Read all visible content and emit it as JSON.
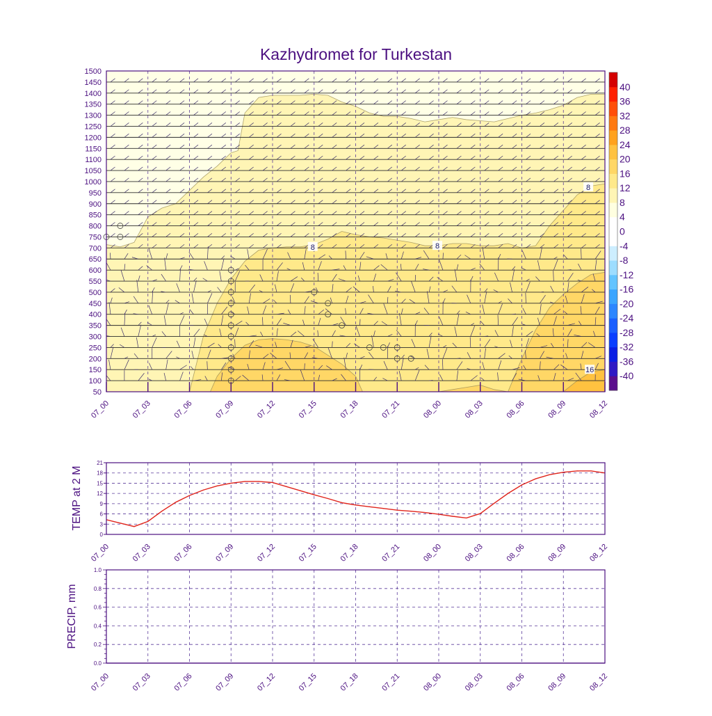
{
  "title": "Kazhydromet for Turkestan",
  "colors": {
    "frame": "#4b0f80",
    "grid": "#5a3a9a",
    "temp_line": "#e0241b"
  },
  "x_ticks": [
    "07_00",
    "07_03",
    "07_06",
    "07_09",
    "07_12",
    "07_15",
    "07_18",
    "07_21",
    "08_00",
    "08_03",
    "08_06",
    "08_09",
    "08_12"
  ],
  "cross_section": {
    "ylabels": [
      "50",
      "100",
      "150",
      "200",
      "250",
      "300",
      "350",
      "400",
      "450",
      "500",
      "550",
      "600",
      "650",
      "700",
      "750",
      "800",
      "850",
      "900",
      "950",
      "1000",
      "1050",
      "1100",
      "1150",
      "1200",
      "1250",
      "1300",
      "1350",
      "1400",
      "1450",
      "1500"
    ],
    "contour_labels": [
      "8",
      "8",
      "8",
      "16"
    ]
  },
  "colorbar": {
    "levels": [
      "-40",
      "-36",
      "-32",
      "-28",
      "-24",
      "-20",
      "-16",
      "-12",
      "-8",
      "-4",
      "0",
      "4",
      "8",
      "12",
      "16",
      "20",
      "24",
      "28",
      "32",
      "36",
      "40"
    ],
    "colors": [
      "#5b0f8c",
      "#2f1ac4",
      "#0a1fe4",
      "#0a3fff",
      "#1a5fff",
      "#2c86ff",
      "#3aa5ff",
      "#63c4ff",
      "#9dddff",
      "#cdeeff",
      "#ffffff",
      "#ffffff",
      "#ffffe0",
      "#fff5b5",
      "#ffe98a",
      "#ffd766",
      "#ffc240",
      "#ffa21e",
      "#ff7a10",
      "#ff4f08",
      "#ff2000",
      "#d40000"
    ]
  },
  "chart_data": [
    {
      "type": "heatmap",
      "title": "Kazhydromet for Turkestan",
      "xlabel": "",
      "ylabel": "",
      "x_categories": [
        "07_00",
        "07_03",
        "07_06",
        "07_09",
        "07_12",
        "07_15",
        "07_18",
        "07_21",
        "08_00",
        "08_03",
        "08_06",
        "08_09",
        "08_12"
      ],
      "ylim": [
        50,
        1500
      ],
      "contours": [
        {
          "level": 8,
          "x_hours": [
            0,
            1,
            2,
            3,
            4,
            5,
            6,
            7,
            8,
            9,
            9.5,
            10,
            11,
            12,
            13,
            14,
            15,
            16,
            17,
            18,
            19,
            20,
            21,
            22,
            23,
            24,
            25,
            26,
            27,
            28,
            29,
            30,
            31,
            32,
            33,
            34,
            35,
            36
          ],
          "y": [
            715,
            705,
            725,
            840,
            880,
            900,
            960,
            1020,
            1070,
            1130,
            1140,
            1310,
            1380,
            1390,
            1390,
            1390,
            1395,
            1390,
            1360,
            1340,
            1310,
            1295,
            1295,
            1285,
            1270,
            1280,
            1290,
            1280,
            1275,
            1270,
            1285,
            1300,
            1310,
            1325,
            1345,
            1380,
            1395,
            1395
          ]
        },
        {
          "level": 8,
          "x_hours": [
            0,
            1,
            2,
            3,
            4,
            5,
            6,
            7,
            8,
            9,
            10,
            11,
            12,
            13,
            14,
            15,
            16,
            17,
            18,
            19,
            20,
            21,
            22,
            23,
            24,
            25,
            26,
            27,
            28,
            29,
            30,
            31,
            32,
            33,
            34,
            35,
            36
          ],
          "y": [
            50,
            50,
            50,
            50,
            50,
            50,
            50,
            300,
            450,
            560,
            640,
            690,
            700,
            705,
            705,
            715,
            740,
            775,
            760,
            750,
            745,
            735,
            725,
            710,
            710,
            720,
            720,
            710,
            710,
            720,
            700,
            710,
            800,
            870,
            940,
            980,
            990
          ]
        },
        {
          "level": 12,
          "x_hours": [
            7.5,
            8,
            9,
            10,
            11,
            12,
            13,
            14,
            15,
            16,
            17,
            18,
            18.5
          ],
          "y": [
            50,
            120,
            200,
            260,
            285,
            290,
            285,
            275,
            255,
            215,
            175,
            120,
            50
          ]
        },
        {
          "level": 12,
          "x_hours": [
            24,
            25,
            26,
            27,
            28,
            29,
            30,
            31,
            32,
            33,
            34,
            35,
            36
          ],
          "y": [
            50,
            60,
            70,
            80,
            60,
            50,
            200,
            330,
            430,
            490,
            540,
            580,
            590
          ]
        },
        {
          "level": 16,
          "x_hours": [
            33,
            34,
            35,
            36
          ],
          "y": [
            50,
            100,
            140,
            150
          ]
        }
      ]
    },
    {
      "type": "line",
      "title": "",
      "xlabel": "",
      "ylabel": "TEMP at 2 M",
      "x_categories": [
        "07_00",
        "07_03",
        "07_06",
        "07_09",
        "07_12",
        "07_15",
        "07_18",
        "07_21",
        "08_00",
        "08_03",
        "08_06",
        "08_09",
        "08_12"
      ],
      "yticks": [
        "0",
        "3",
        "6",
        "9",
        "12",
        "15",
        "18",
        "21"
      ],
      "ylim": [
        0,
        21
      ],
      "x_hours": [
        0,
        1,
        2,
        3,
        4,
        5,
        6,
        7,
        8,
        9,
        10,
        11,
        12,
        13,
        14,
        15,
        16,
        17,
        18,
        19,
        20,
        21,
        22,
        23,
        24,
        25,
        26,
        27,
        28,
        29,
        30,
        31,
        32,
        33,
        34,
        35,
        36
      ],
      "values": [
        4.3,
        3.3,
        2.3,
        3.8,
        6.8,
        9.4,
        11.4,
        13.0,
        14.2,
        15.0,
        15.5,
        15.5,
        15.2,
        14.0,
        12.8,
        11.6,
        10.5,
        9.3,
        8.6,
        8.1,
        7.6,
        7.1,
        6.8,
        6.4,
        5.9,
        5.3,
        4.8,
        6.1,
        9.1,
        12.0,
        14.5,
        16.3,
        17.5,
        18.2,
        18.6,
        18.6,
        18.0
      ]
    },
    {
      "type": "line",
      "title": "",
      "xlabel": "",
      "ylabel": "PRECIP, mm",
      "x_categories": [
        "07_00",
        "07_03",
        "07_06",
        "07_09",
        "07_12",
        "07_15",
        "07_18",
        "07_21",
        "08_00",
        "08_03",
        "08_06",
        "08_09",
        "08_12"
      ],
      "yticks": [
        "0.0",
        "0.2",
        "0.4",
        "0.6",
        "0.8",
        "1.0"
      ],
      "ylim": [
        0,
        1.0
      ],
      "x_hours": [
        0,
        3,
        6,
        9,
        12,
        15,
        18,
        21,
        24,
        27,
        30,
        33,
        36
      ],
      "values": [
        0,
        0,
        0,
        0,
        0,
        0,
        0,
        0,
        0,
        0,
        0,
        0,
        0
      ]
    }
  ]
}
